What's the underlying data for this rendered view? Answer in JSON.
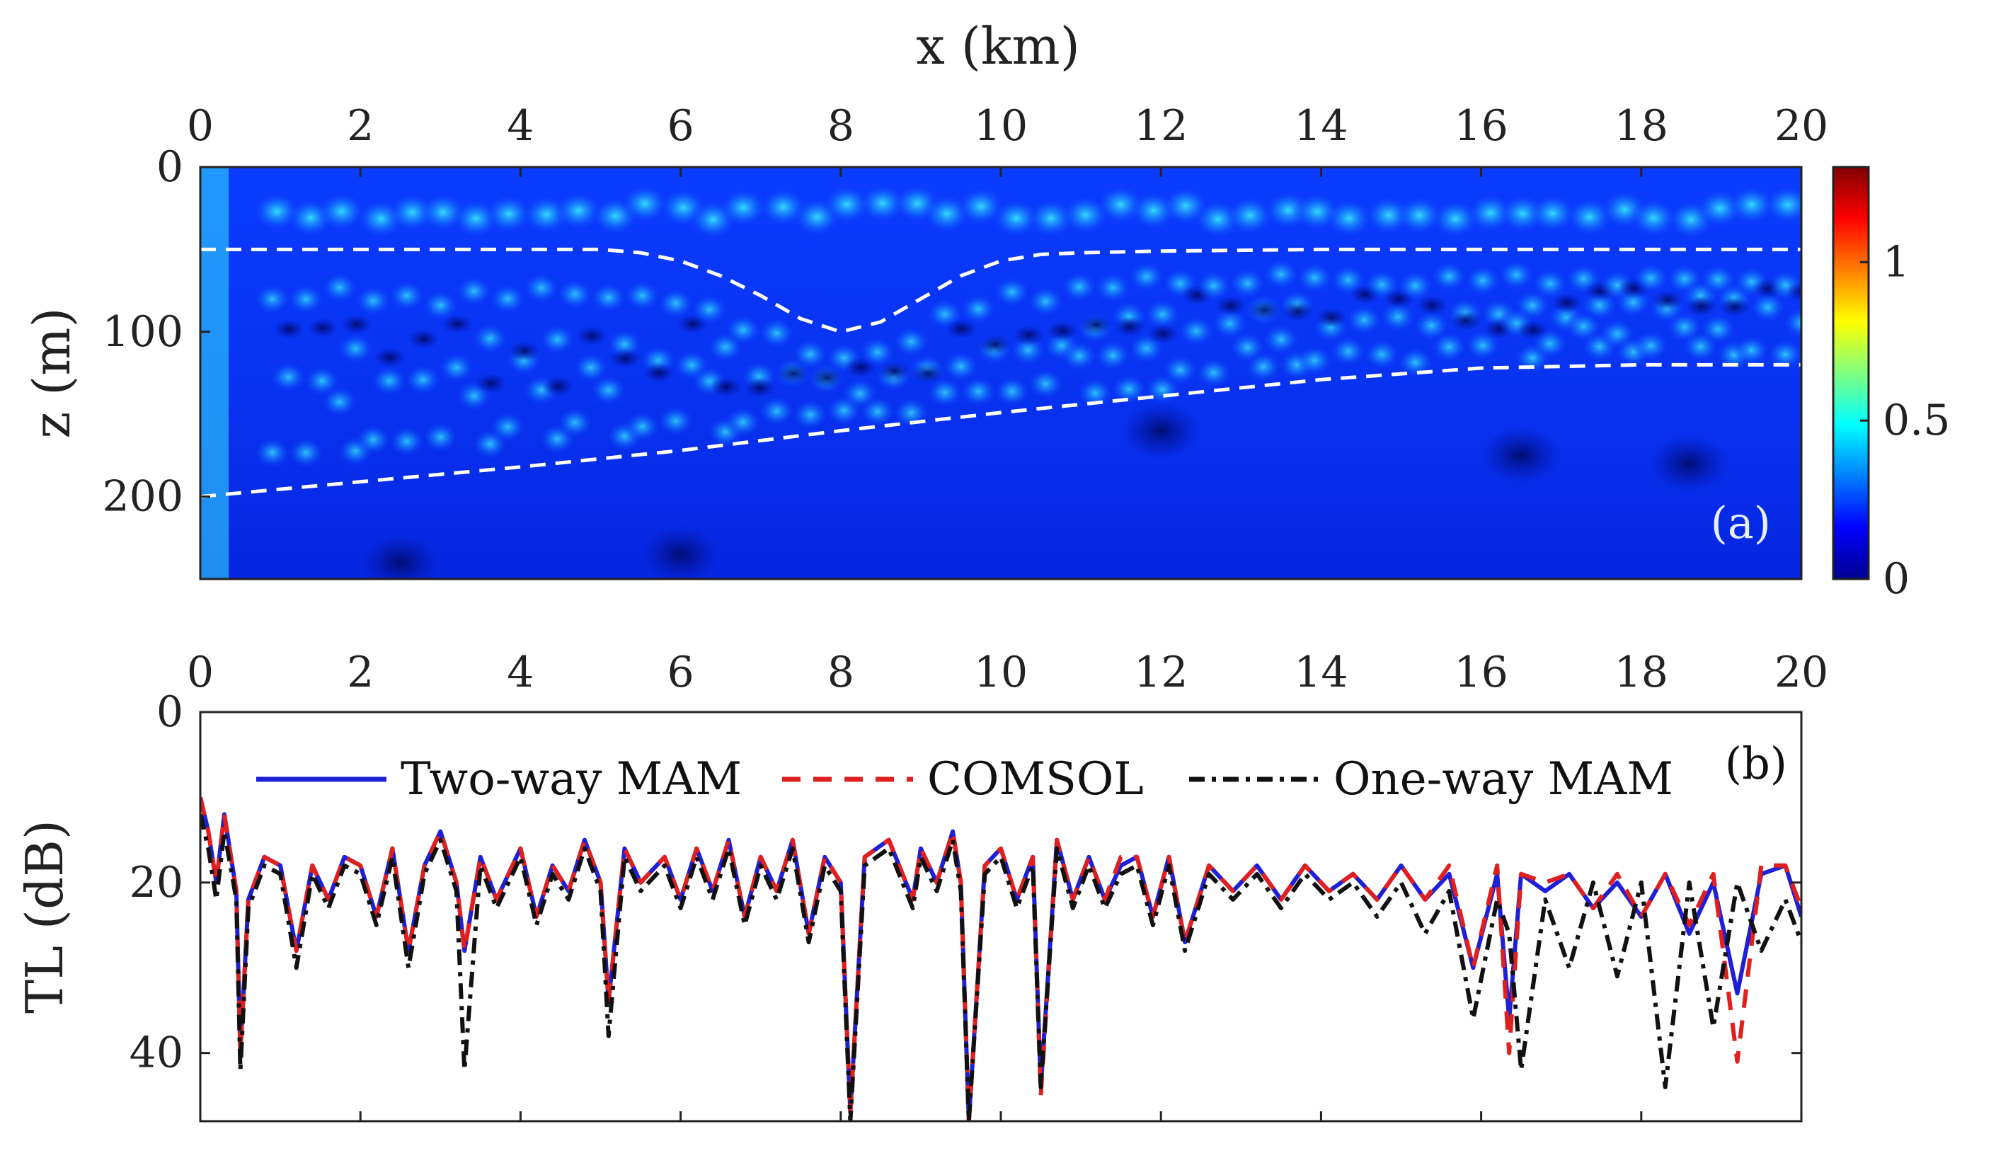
{
  "chart_data": [
    {
      "type": "heatmap",
      "panel_label": "(a)",
      "xlabel": "x (km)",
      "ylabel": "z (m)",
      "xlim": [
        0,
        20
      ],
      "ylim": [
        0,
        250
      ],
      "x_ticks": [
        "0",
        "2",
        "4",
        "6",
        "8",
        "10",
        "12",
        "14",
        "16",
        "18",
        "20"
      ],
      "x_tick_values": [
        0,
        2,
        4,
        6,
        8,
        10,
        12,
        14,
        16,
        18,
        20
      ],
      "y_ticks": [
        "0",
        "100",
        "200"
      ],
      "y_tick_values": [
        0,
        100,
        200
      ],
      "colorbar": {
        "range": [
          0,
          1.3
        ],
        "ticks": [
          "0",
          "0.5",
          "1"
        ],
        "tick_values": [
          0,
          0.5,
          1
        ],
        "colormap": "jet"
      },
      "interfaces": [
        {
          "name": "upper interface",
          "x": [
            0,
            4,
            5,
            5.5,
            6,
            6.5,
            7,
            7.5,
            8,
            8.5,
            9,
            9.5,
            10,
            10.5,
            11,
            12,
            14,
            16,
            18,
            20
          ],
          "z": [
            50,
            50,
            50,
            52,
            57,
            66,
            78,
            92,
            100,
            94,
            80,
            66,
            57,
            53,
            52,
            51,
            50,
            50,
            50,
            50
          ]
        },
        {
          "name": "lower interface",
          "x": [
            0,
            2,
            4,
            6,
            8,
            10,
            12,
            14,
            16,
            18,
            20
          ],
          "z": [
            200,
            191,
            182,
            172,
            160,
            149,
            139,
            129,
            122,
            120,
            120
          ]
        }
      ]
    },
    {
      "type": "line",
      "panel_label": "(b)",
      "xlabel": "",
      "ylabel": "TL (dB)",
      "xlim": [
        0,
        20
      ],
      "ylim": [
        0,
        48
      ],
      "x_ticks": [
        "0",
        "2",
        "4",
        "6",
        "8",
        "10",
        "12",
        "14",
        "16",
        "18",
        "20"
      ],
      "x_tick_values": [
        0,
        2,
        4,
        6,
        8,
        10,
        12,
        14,
        16,
        18,
        20
      ],
      "y_ticks": [
        "0",
        "20",
        "40"
      ],
      "y_tick_values": [
        0,
        20,
        40
      ],
      "legend": [
        "Two-way MAM",
        "COMSOL",
        "One-way MAM"
      ],
      "series": [
        {
          "name": "Two-way MAM",
          "color": "#1f1fd6",
          "dash": "solid",
          "x": [
            0,
            0.1,
            0.2,
            0.3,
            0.45,
            0.5,
            0.6,
            0.8,
            1.0,
            1.2,
            1.4,
            1.6,
            1.8,
            2.0,
            2.2,
            2.4,
            2.6,
            2.8,
            3.0,
            3.2,
            3.3,
            3.5,
            3.7,
            4.0,
            4.2,
            4.4,
            4.6,
            4.8,
            5.0,
            5.1,
            5.3,
            5.5,
            5.8,
            6.0,
            6.2,
            6.4,
            6.6,
            6.8,
            7.0,
            7.2,
            7.4,
            7.6,
            7.8,
            8.0,
            8.12,
            8.3,
            8.6,
            8.9,
            9.0,
            9.2,
            9.4,
            9.5,
            9.6,
            9.8,
            10.0,
            10.2,
            10.4,
            10.5,
            10.7,
            10.9,
            11.1,
            11.3,
            11.5,
            11.7,
            11.9,
            12.1,
            12.3,
            12.6,
            12.9,
            13.2,
            13.5,
            13.8,
            14.1,
            14.4,
            14.7,
            15.0,
            15.3,
            15.6,
            15.9,
            16.2,
            16.35,
            16.5,
            16.8,
            17.1,
            17.4,
            17.7,
            18.0,
            18.3,
            18.6,
            18.9,
            19.2,
            19.5,
            19.8,
            20.0
          ],
          "y": [
            10,
            14,
            20,
            12,
            21,
            40,
            22,
            17,
            18,
            28,
            18,
            22,
            17,
            18,
            24,
            16,
            28,
            18,
            14,
            20,
            28,
            17,
            22,
            16,
            24,
            18,
            21,
            15,
            20,
            34,
            16,
            20,
            17,
            22,
            16,
            21,
            15,
            24,
            17,
            21,
            15,
            26,
            17,
            20,
            47,
            17,
            15,
            22,
            16,
            20,
            14,
            20,
            48,
            18,
            16,
            22,
            17,
            44,
            15,
            22,
            17,
            22,
            18,
            17,
            24,
            17,
            27,
            18,
            21,
            18,
            22,
            18,
            21,
            19,
            22,
            18,
            22,
            19,
            30,
            19,
            36,
            19,
            21,
            19,
            23,
            20,
            24,
            19,
            26,
            20,
            33,
            19,
            18,
            24
          ]
        },
        {
          "name": "COMSOL",
          "color": "#e01f1f",
          "dash": "dashed",
          "x": [
            0,
            0.1,
            0.2,
            0.3,
            0.45,
            0.5,
            0.6,
            0.8,
            1.0,
            1.2,
            1.4,
            1.6,
            1.8,
            2.0,
            2.2,
            2.4,
            2.6,
            2.8,
            3.0,
            3.2,
            3.3,
            3.5,
            3.7,
            4.0,
            4.2,
            4.4,
            4.6,
            4.8,
            5.0,
            5.1,
            5.3,
            5.5,
            5.8,
            6.0,
            6.2,
            6.4,
            6.6,
            6.8,
            7.0,
            7.2,
            7.4,
            7.6,
            7.8,
            8.0,
            8.12,
            8.3,
            8.6,
            8.9,
            9.0,
            9.2,
            9.4,
            9.5,
            9.6,
            9.8,
            10.0,
            10.2,
            10.4,
            10.5,
            10.7,
            10.9,
            11.1,
            11.3,
            11.5,
            11.7,
            11.9,
            12.1,
            12.3,
            12.6,
            12.9,
            13.2,
            13.5,
            13.8,
            14.1,
            14.4,
            14.7,
            15.0,
            15.3,
            15.6,
            15.9,
            16.2,
            16.35,
            16.5,
            16.8,
            17.1,
            17.4,
            17.7,
            18.0,
            18.3,
            18.6,
            18.9,
            19.2,
            19.5,
            19.8,
            20.0
          ],
          "y": [
            10,
            14,
            20,
            12,
            21,
            40,
            22,
            17,
            18,
            28,
            18,
            22,
            17,
            18,
            24,
            16,
            28,
            18,
            14,
            20,
            28,
            17,
            22,
            16,
            24,
            18,
            21,
            15,
            20,
            34,
            16,
            20,
            17,
            22,
            16,
            21,
            15,
            24,
            17,
            21,
            15,
            26,
            17,
            20,
            47,
            17,
            15,
            22,
            16,
            20,
            14,
            20,
            48,
            18,
            16,
            22,
            17,
            45,
            15,
            22,
            17,
            22,
            17,
            17,
            24,
            17,
            27,
            18,
            21,
            18,
            22,
            18,
            21,
            19,
            22,
            18,
            22,
            18,
            30,
            18,
            40,
            19,
            20,
            19,
            23,
            19,
            24,
            19,
            25,
            19,
            41,
            18,
            18,
            23
          ]
        },
        {
          "name": "One-way MAM",
          "color": "#111111",
          "dash": "dashdot",
          "x": [
            0,
            0.1,
            0.2,
            0.3,
            0.45,
            0.5,
            0.6,
            0.8,
            1.0,
            1.2,
            1.4,
            1.6,
            1.8,
            2.0,
            2.2,
            2.4,
            2.6,
            2.8,
            3.0,
            3.2,
            3.3,
            3.5,
            3.7,
            4.0,
            4.2,
            4.4,
            4.6,
            4.8,
            5.0,
            5.1,
            5.3,
            5.5,
            5.8,
            6.0,
            6.2,
            6.4,
            6.6,
            6.8,
            7.0,
            7.2,
            7.4,
            7.6,
            7.8,
            8.0,
            8.12,
            8.3,
            8.6,
            8.9,
            9.0,
            9.2,
            9.4,
            9.5,
            9.6,
            9.8,
            10.0,
            10.2,
            10.4,
            10.5,
            10.7,
            10.9,
            11.1,
            11.3,
            11.5,
            11.7,
            11.9,
            12.1,
            12.3,
            12.6,
            12.9,
            13.2,
            13.5,
            13.8,
            14.1,
            14.4,
            14.7,
            15.0,
            15.3,
            15.6,
            15.9,
            16.2,
            16.35,
            16.5,
            16.8,
            17.1,
            17.4,
            17.7,
            18.0,
            18.3,
            18.6,
            18.9,
            19.2,
            19.5,
            19.8,
            20.0
          ],
          "y": [
            12,
            16,
            22,
            14,
            22,
            42,
            23,
            18,
            19,
            30,
            19,
            23,
            18,
            19,
            25,
            17,
            30,
            19,
            15,
            21,
            42,
            18,
            23,
            17,
            25,
            19,
            22,
            16,
            21,
            38,
            17,
            21,
            18,
            23,
            17,
            22,
            16,
            25,
            18,
            22,
            16,
            27,
            18,
            21,
            48,
            18,
            16,
            23,
            17,
            21,
            15,
            21,
            48,
            19,
            17,
            23,
            18,
            44,
            16,
            23,
            18,
            23,
            19,
            18,
            25,
            18,
            28,
            19,
            22,
            19,
            23,
            19,
            22,
            20,
            24,
            20,
            26,
            21,
            36,
            22,
            26,
            42,
            22,
            30,
            20,
            31,
            20,
            44,
            20,
            37,
            20,
            28,
            22,
            27
          ]
        }
      ]
    }
  ]
}
